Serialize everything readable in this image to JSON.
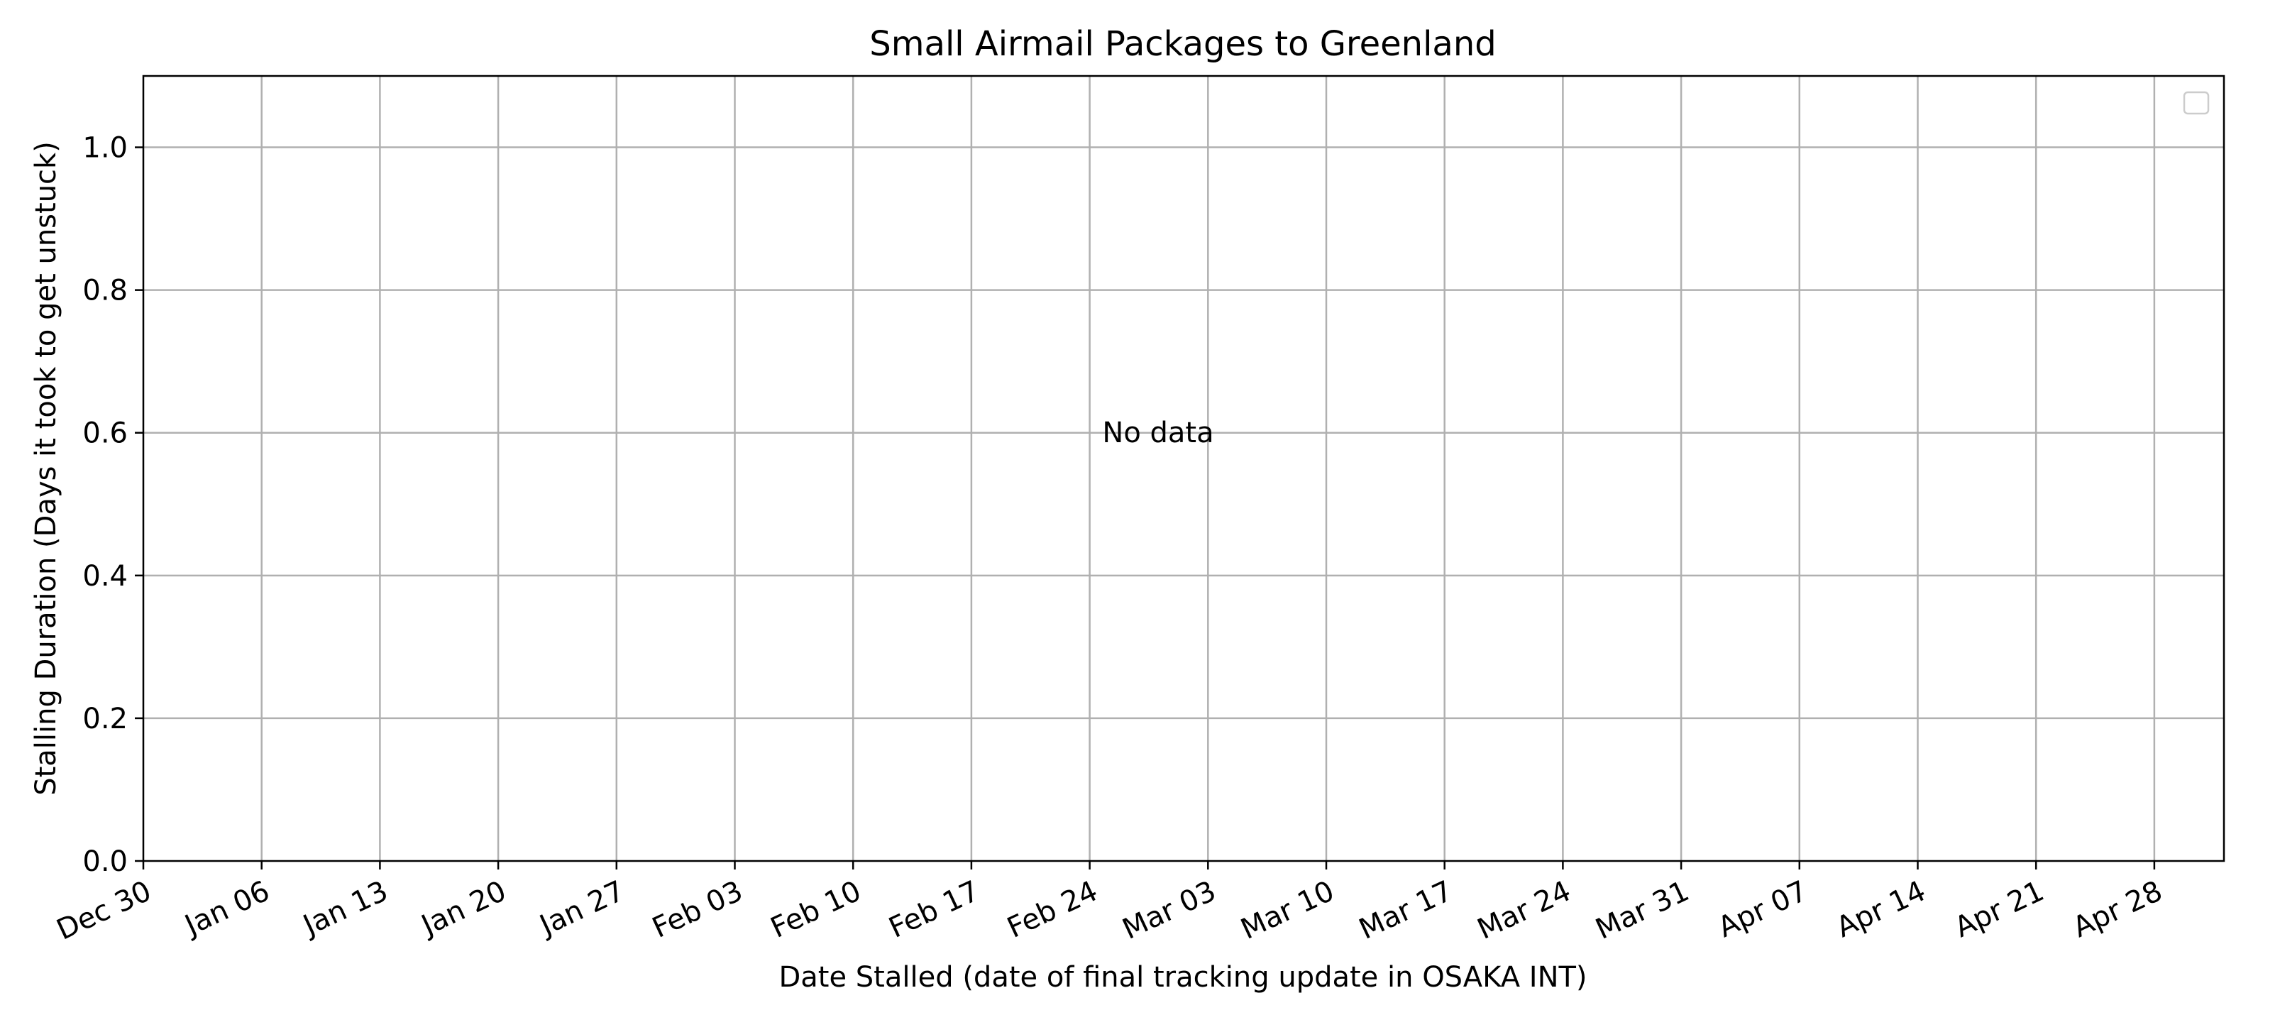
{
  "chart_data": {
    "type": "scatter",
    "title": "Small Airmail Packages to Greenland",
    "xlabel": "Date Stalled (date of final tracking update in OSAKA INT)",
    "ylabel": "Stalling Duration (Days it took to get unstuck)",
    "annotation": "No data",
    "x_ticks": [
      "Dec 30",
      "Jan 06",
      "Jan 13",
      "Jan 20",
      "Jan 27",
      "Feb 03",
      "Feb 10",
      "Feb 17",
      "Feb 24",
      "Mar 03",
      "Mar 10",
      "Mar 17",
      "Mar 24",
      "Mar 31",
      "Apr 07",
      "Apr 14",
      "Apr 21",
      "Apr 28"
    ],
    "y_ticks": [
      "0.0",
      "0.2",
      "0.4",
      "0.6",
      "0.8",
      "1.0"
    ],
    "ylim": [
      0,
      1.1
    ],
    "grid": true,
    "legend": "top-right",
    "legend_entries": [],
    "series": [],
    "colors": {
      "grid": "#b0b0b0",
      "axes": "#000000",
      "legend_border": "#cccccc"
    }
  }
}
